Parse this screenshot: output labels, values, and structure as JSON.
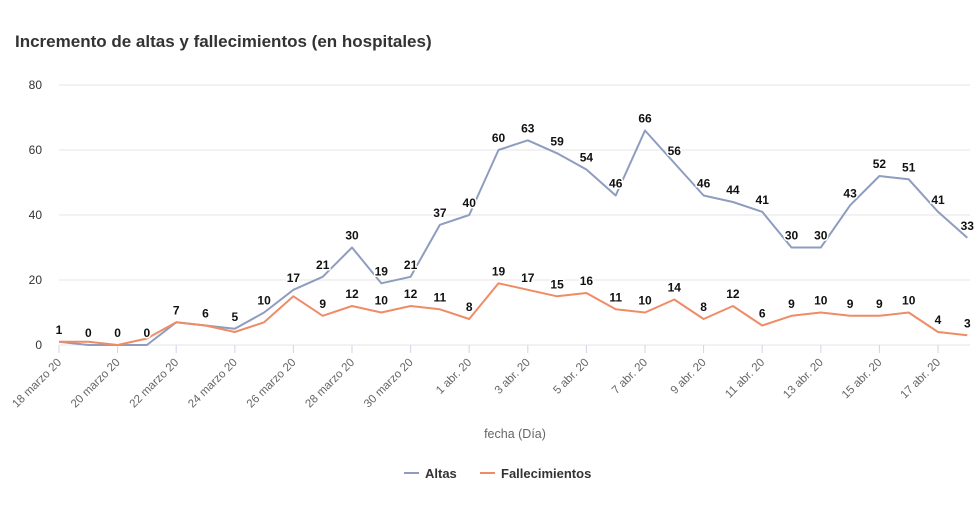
{
  "chart_data": {
    "type": "line",
    "title": "Incremento de altas y fallecimientos (en hospitales)",
    "xlabel": "fecha (Día)",
    "ylabel": "",
    "ylim": [
      0,
      80
    ],
    "yticks": [
      0,
      20,
      40,
      60,
      80
    ],
    "x_tick_labels": [
      "18 marzo 20",
      "20 marzo 20",
      "22 marzo 20",
      "24 marzo 20",
      "26 marzo 20",
      "28 marzo 20",
      "30 marzo 20",
      "1 abr. 20",
      "3 abr. 20",
      "5 abr. 20",
      "7 abr. 20",
      "9 abr. 20",
      "11 abr. 20",
      "13 abr. 20",
      "15 abr. 20",
      "17 abr. 20"
    ],
    "grid": true,
    "legend": "bottom-center",
    "series": [
      {
        "name": "Altas",
        "color": "#8e9dbf",
        "values": [
          1,
          0,
          0,
          0,
          7,
          6,
          5,
          10,
          17,
          21,
          30,
          19,
          21,
          37,
          40,
          60,
          63,
          59,
          54,
          46,
          66,
          56,
          46,
          44,
          41,
          30,
          30,
          43,
          52,
          51,
          41,
          33
        ]
      },
      {
        "name": "Fallecimientos",
        "color": "#ef8c66",
        "values": [
          1,
          1,
          0,
          2,
          7,
          6,
          4,
          7,
          15,
          9,
          12,
          10,
          12,
          11,
          8,
          19,
          17,
          15,
          16,
          11,
          10,
          14,
          8,
          12,
          6,
          9,
          10,
          9,
          9,
          10,
          4,
          3
        ]
      }
    ],
    "altas_labels": [
      "1",
      "0",
      "0",
      "0",
      "7",
      "6",
      "5",
      "10",
      "17",
      "21",
      "30",
      "19",
      "21",
      "37",
      "40",
      "60",
      "63",
      "59",
      "54",
      "46",
      "66",
      "56",
      "46",
      "44",
      "41",
      "30",
      "30",
      "43",
      "52",
      "51",
      "41",
      "33"
    ],
    "fallecimientos_labels": [
      "",
      "",
      "",
      "",
      "",
      "",
      "",
      "",
      "",
      "9",
      "12",
      "10",
      "12",
      "11",
      "8",
      "19",
      "17",
      "15",
      "16",
      "11",
      "10",
      "14",
      "8",
      "12",
      "6",
      "9",
      "10",
      "9",
      "9",
      "10",
      "4",
      "3"
    ]
  }
}
